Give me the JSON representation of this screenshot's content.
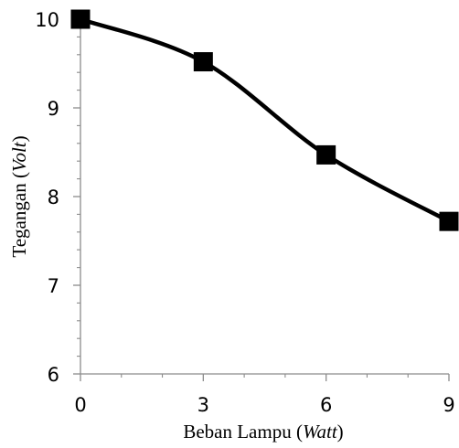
{
  "chart_data": {
    "type": "line",
    "title": "",
    "xlabel": {
      "text": "Beban Lampu (",
      "italic": "Watt",
      "suffix": ")"
    },
    "ylabel": {
      "text": "Tegangan (",
      "italic": "Volt",
      "suffix": ")"
    },
    "x_ticks": [
      "0",
      "3",
      "6",
      "9"
    ],
    "y_ticks": [
      "6",
      "7",
      "8",
      "9",
      "10"
    ],
    "xlim": [
      0,
      9
    ],
    "ylim": [
      6,
      10
    ],
    "grid": false,
    "legend": "none",
    "series": [
      {
        "x": [
          0,
          3,
          6,
          9
        ],
        "y": [
          10.0,
          9.52,
          8.47,
          7.72
        ],
        "color": "#000000",
        "marker": "square",
        "smooth": true
      }
    ]
  }
}
